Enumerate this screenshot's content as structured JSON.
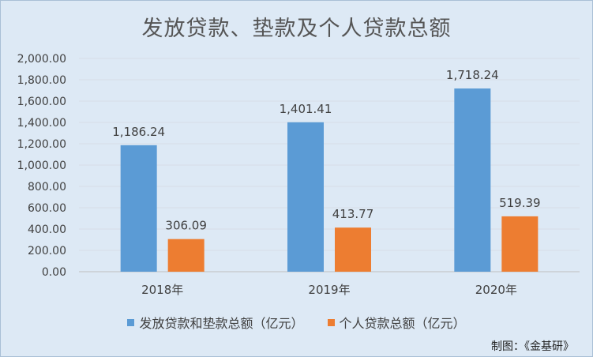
{
  "chart_data": {
    "type": "bar",
    "title": "发放贷款、垫款及个人贷款总额",
    "categories": [
      "2018年",
      "2019年",
      "2020年"
    ],
    "series": [
      {
        "name": "发放贷款和垫款总额（亿元）",
        "values": [
          1186.24,
          1401.41,
          1718.24
        ],
        "labels": [
          "1,186.24",
          "1,401.41",
          "1,718.24"
        ],
        "color": "#5b9bd5"
      },
      {
        "name": "个人贷款总额（亿元）",
        "values": [
          306.09,
          413.77,
          519.39
        ],
        "labels": [
          "306.09",
          "413.77",
          "519.39"
        ],
        "color": "#ed7d31"
      }
    ],
    "ylim": [
      0,
      2000
    ],
    "yticks": [
      "0.00",
      "200.00",
      "400.00",
      "600.00",
      "800.00",
      "1,000.00",
      "1,200.00",
      "1,400.00",
      "1,600.00",
      "1,800.00",
      "2,000.00"
    ],
    "grid": true,
    "legend_position": "bottom"
  },
  "credit": "制图：《金基研》"
}
